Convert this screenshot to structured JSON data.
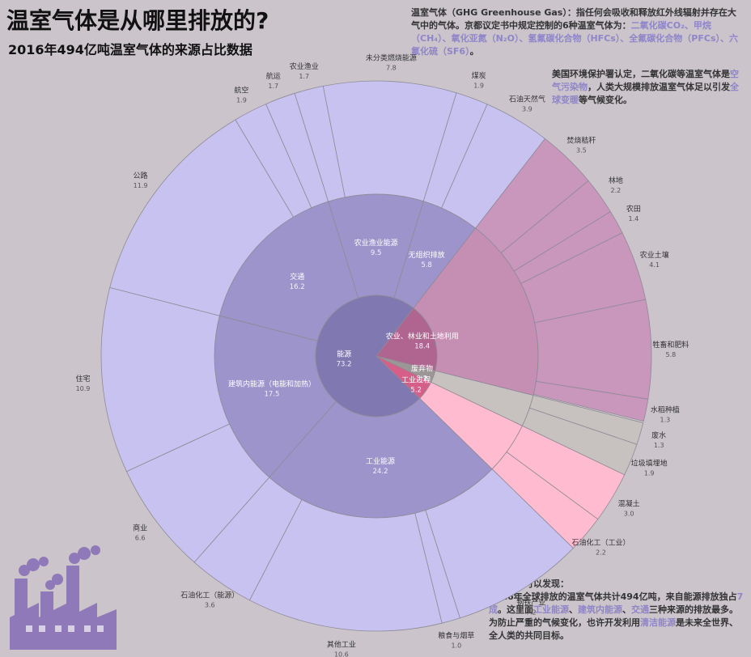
{
  "title": "温室气体是从哪里排放的?",
  "subtitle": "2016年494亿吨温室气体的来源占比数据",
  "intro": {
    "l1": "温室气体（GHG Greenhouse Gas）：指任何会吸收和释放红外线辐射并存在大气中的气体。京都议定书中规定控制的6种温室气体为：",
    "gases": "二氧化碳CO₂、甲烷（CH₄）、氧化亚氮（N₂O）、氢氟碳化合物（HFCs）、全氟碳化合物（PFCs）、六氟化硫（SF6）",
    "end": "。"
  },
  "epa_note": {
    "p1": "美国环境保护署认定，二氧化碳等温室气体是",
    "h1": "空气污染物",
    "p2": "，人类大规模排放温室气体足以引发",
    "h2": "全球变暖",
    "p3": "等气候变化。"
  },
  "conclusion": {
    "p1": "根据图表可以发现：",
    "p2": "2016年全球排放的温室气体共计494亿吨，来自能源排放独占",
    "h1": "7成",
    "p3": "。这里面",
    "h2": "工业能源",
    "s1": "、",
    "h3": "建筑内能源",
    "s2": "、",
    "h4": "交通",
    "p4": "三种来源的排放最多。为防止严重的气候变化，也许开发利用",
    "h5": "清洁能源",
    "p5": "是未来全世界、全人类的共同目标。"
  },
  "colors": {
    "background": "#cbc4cb",
    "energy_center": "#8078b0",
    "energy_middle": "#9d94cb",
    "energy_outer": "#c8c2f0",
    "agriculture_center": "#b06590",
    "agriculture_middle": "#c48fb3",
    "agriculture_outer": "#c996bc",
    "industry_center": "#d55f88",
    "industry_outer": "#ffbcd0",
    "waste_center": "#9d9696",
    "waste_outer": "#c7c2c0",
    "highlight": "#8f85c9",
    "factory_icon": "#8f79b8"
  },
  "chart_data": {
    "type": "sunburst",
    "unit": "亿吨",
    "total": 494,
    "sectors": [
      {
        "name": "能源",
        "value": 73.2,
        "subsectors": [
          {
            "name": "工业能源",
            "value": 24.2,
            "items": [
              {
                "name": "钢铁产业",
                "value": 7.2
              },
              {
                "name": "粮食与烟草",
                "value": 1.0
              },
              {
                "name": "其他工业",
                "value": 10.6
              },
              {
                "name": "石油化工（能源）",
                "value": 3.6
              }
            ]
          },
          {
            "name": "建筑内能源（电能和加热）",
            "value": 17.5,
            "items": [
              {
                "name": "商业",
                "value": 6.6
              },
              {
                "name": "住宅",
                "value": 10.9
              }
            ]
          },
          {
            "name": "交通",
            "value": 16.2,
            "items": [
              {
                "name": "公路",
                "value": 11.9
              },
              {
                "name": "航空",
                "value": 1.9
              },
              {
                "name": "航运",
                "value": 1.7
              }
            ]
          },
          {
            "name": "农业渔业能源",
            "value": 9.5,
            "items": [
              {
                "name": "农业渔业",
                "value": 1.7
              },
              {
                "name": "未分类燃烧能源",
                "value": 7.8
              }
            ]
          },
          {
            "name": "无组织排放",
            "value": 5.8,
            "items": [
              {
                "name": "煤炭",
                "value": 1.9
              },
              {
                "name": "石油天然气",
                "value": 3.9
              }
            ]
          }
        ]
      },
      {
        "name": "农业、林业和土地利用",
        "value": 18.4,
        "items": [
          {
            "name": "焚烧秸秆",
            "value": 3.5
          },
          {
            "name": "林地",
            "value": 2.2
          },
          {
            "name": "农田",
            "value": 1.4
          },
          {
            "name": "农业土壤",
            "value": 4.1
          },
          {
            "name": "牲畜和肥料",
            "value": 5.8
          },
          {
            "name": "水稻种植",
            "value": 1.3
          }
        ]
      },
      {
        "name": "废弃物",
        "value": 3.2,
        "items": [
          {
            "name": "废水",
            "value": 1.3
          },
          {
            "name": "垃圾填埋地",
            "value": 1.9
          }
        ]
      },
      {
        "name": "工业过程",
        "value": 5.2,
        "items": [
          {
            "name": "混凝土",
            "value": 3.0
          },
          {
            "name": "石油化工（工业）",
            "value": 2.2
          }
        ]
      }
    ]
  }
}
